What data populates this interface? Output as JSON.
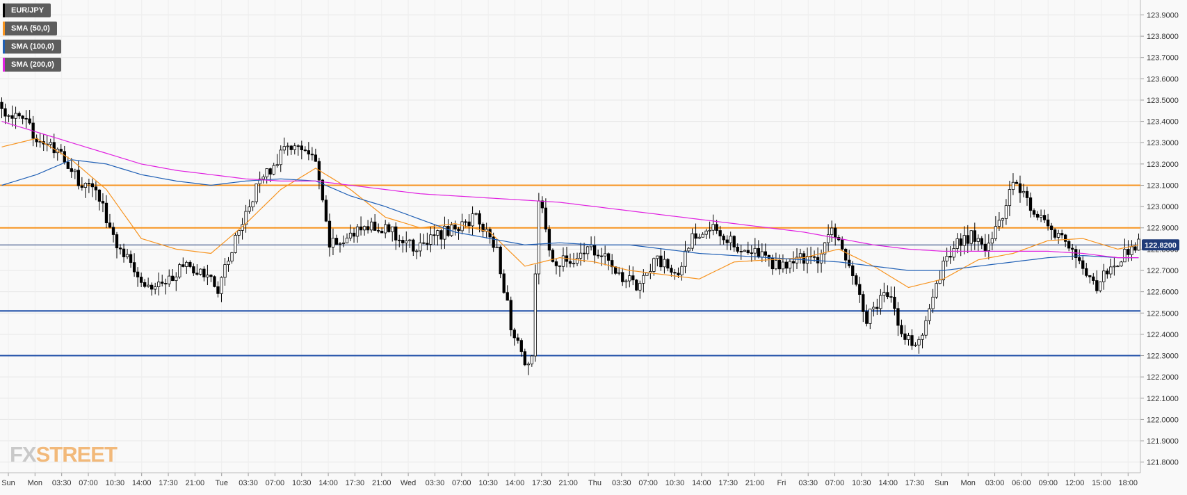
{
  "chart_data": {
    "type": "candlestick",
    "symbol": "EUR/JPY",
    "legend": [
      {
        "label": "EUR/JPY",
        "color": "#000000"
      },
      {
        "label": "SMA (50,0)",
        "color": "#f7931e"
      },
      {
        "label": "SMA (100,0)",
        "color": "#1f5fb5"
      },
      {
        "label": "SMA (200,0)",
        "color": "#e020e0"
      }
    ],
    "ylim": [
      121.75,
      123.97
    ],
    "yticks": [
      "123.9000",
      "123.8000",
      "123.7000",
      "123.6000",
      "123.5000",
      "123.4000",
      "123.3000",
      "123.2000",
      "123.1000",
      "123.0000",
      "122.9000",
      "122.8000",
      "122.7000",
      "122.6000",
      "122.5000",
      "122.4000",
      "122.3000",
      "122.2000",
      "122.1000",
      "122.0000",
      "121.9000",
      "121.8000"
    ],
    "xticks": [
      "Sun",
      "Mon",
      "03:30",
      "07:00",
      "10:30",
      "14:00",
      "17:30",
      "21:00",
      "Tue",
      "03:30",
      "07:00",
      "10:30",
      "14:00",
      "17:30",
      "21:00",
      "Wed",
      "03:30",
      "07:00",
      "10:30",
      "14:00",
      "17:30",
      "21:00",
      "Thu",
      "03:30",
      "07:00",
      "10:30",
      "14:00",
      "17:30",
      "21:00",
      "Fri",
      "03:30",
      "07:00",
      "10:30",
      "14:00",
      "17:30",
      "Sun",
      "Mon",
      "03:00",
      "06:00",
      "09:00",
      "12:00",
      "15:00",
      "18:00"
    ],
    "current_price": "122.8200",
    "resistance_levels": [
      123.1,
      122.9
    ],
    "support_levels": [
      122.51,
      122.3
    ],
    "levels_colors": {
      "resistance": "#f7931e",
      "support": "#1f4fa8",
      "current": "#1f3b78"
    },
    "close_path": [
      [
        0,
        123.45
      ],
      [
        6,
        123.4
      ],
      [
        12,
        123.3
      ],
      [
        18,
        123.22
      ],
      [
        22,
        123.12
      ],
      [
        28,
        123.05
      ],
      [
        32,
        122.85
      ],
      [
        38,
        122.72
      ],
      [
        42,
        122.62
      ],
      [
        48,
        122.66
      ],
      [
        52,
        122.72
      ],
      [
        58,
        122.68
      ],
      [
        62,
        122.62
      ],
      [
        66,
        122.8
      ],
      [
        70,
        122.98
      ],
      [
        74,
        123.12
      ],
      [
        80,
        123.24
      ],
      [
        84,
        123.3
      ],
      [
        90,
        123.2
      ],
      [
        94,
        122.82
      ],
      [
        100,
        122.86
      ],
      [
        106,
        122.92
      ],
      [
        112,
        122.88
      ],
      [
        118,
        122.8
      ],
      [
        124,
        122.86
      ],
      [
        130,
        122.9
      ],
      [
        136,
        122.95
      ],
      [
        142,
        122.8
      ],
      [
        146,
        122.45
      ],
      [
        150,
        122.24
      ],
      [
        152,
        122.3
      ],
      [
        154,
        123.05
      ],
      [
        158,
        122.72
      ],
      [
        164,
        122.76
      ],
      [
        170,
        122.8
      ],
      [
        176,
        122.7
      ],
      [
        182,
        122.62
      ],
      [
        188,
        122.75
      ],
      [
        194,
        122.68
      ],
      [
        198,
        122.86
      ],
      [
        204,
        122.92
      ],
      [
        210,
        122.82
      ],
      [
        216,
        122.78
      ],
      [
        222,
        122.72
      ],
      [
        228,
        122.75
      ],
      [
        234,
        122.76
      ],
      [
        238,
        122.88
      ],
      [
        244,
        122.7
      ],
      [
        248,
        122.48
      ],
      [
        254,
        122.6
      ],
      [
        258,
        122.4
      ],
      [
        262,
        122.33
      ],
      [
        266,
        122.5
      ],
      [
        270,
        122.72
      ],
      [
        274,
        122.82
      ],
      [
        278,
        122.86
      ],
      [
        282,
        122.8
      ],
      [
        286,
        122.92
      ],
      [
        290,
        123.12
      ],
      [
        294,
        123.02
      ],
      [
        298,
        122.95
      ],
      [
        302,
        122.88
      ],
      [
        306,
        122.82
      ],
      [
        310,
        122.7
      ],
      [
        314,
        122.62
      ],
      [
        318,
        122.72
      ],
      [
        322,
        122.78
      ],
      [
        326,
        122.82
      ]
    ],
    "sma50_path": [
      [
        0,
        123.28
      ],
      [
        10,
        123.32
      ],
      [
        20,
        123.22
      ],
      [
        30,
        123.08
      ],
      [
        40,
        122.85
      ],
      [
        50,
        122.8
      ],
      [
        60,
        122.78
      ],
      [
        70,
        122.92
      ],
      [
        80,
        123.08
      ],
      [
        90,
        123.18
      ],
      [
        100,
        123.08
      ],
      [
        110,
        122.95
      ],
      [
        120,
        122.9
      ],
      [
        130,
        122.92
      ],
      [
        140,
        122.88
      ],
      [
        150,
        122.72
      ],
      [
        160,
        122.76
      ],
      [
        170,
        122.74
      ],
      [
        180,
        122.7
      ],
      [
        190,
        122.68
      ],
      [
        200,
        122.66
      ],
      [
        210,
        122.74
      ],
      [
        220,
        122.75
      ],
      [
        230,
        122.76
      ],
      [
        240,
        122.8
      ],
      [
        250,
        122.72
      ],
      [
        260,
        122.62
      ],
      [
        270,
        122.66
      ],
      [
        280,
        122.75
      ],
      [
        290,
        122.78
      ],
      [
        300,
        122.84
      ],
      [
        310,
        122.85
      ],
      [
        320,
        122.8
      ],
      [
        326,
        122.82
      ]
    ],
    "sma100_path": [
      [
        0,
        123.1
      ],
      [
        10,
        123.15
      ],
      [
        20,
        123.22
      ],
      [
        30,
        123.2
      ],
      [
        40,
        123.15
      ],
      [
        50,
        123.12
      ],
      [
        60,
        123.1
      ],
      [
        70,
        123.12
      ],
      [
        80,
        123.13
      ],
      [
        90,
        123.12
      ],
      [
        100,
        123.05
      ],
      [
        110,
        123.0
      ],
      [
        120,
        122.94
      ],
      [
        130,
        122.88
      ],
      [
        140,
        122.85
      ],
      [
        150,
        122.82
      ],
      [
        160,
        122.83
      ],
      [
        170,
        122.82
      ],
      [
        180,
        122.82
      ],
      [
        190,
        122.8
      ],
      [
        200,
        122.78
      ],
      [
        210,
        122.77
      ],
      [
        220,
        122.76
      ],
      [
        230,
        122.75
      ],
      [
        240,
        122.74
      ],
      [
        250,
        122.72
      ],
      [
        260,
        122.7
      ],
      [
        270,
        122.7
      ],
      [
        280,
        122.72
      ],
      [
        290,
        122.74
      ],
      [
        300,
        122.76
      ],
      [
        310,
        122.77
      ],
      [
        320,
        122.76
      ],
      [
        326,
        122.76
      ]
    ],
    "sma200_path": [
      [
        0,
        123.4
      ],
      [
        10,
        123.35
      ],
      [
        20,
        123.3
      ],
      [
        30,
        123.25
      ],
      [
        40,
        123.2
      ],
      [
        50,
        123.17
      ],
      [
        60,
        123.15
      ],
      [
        70,
        123.13
      ],
      [
        80,
        123.12
      ],
      [
        90,
        123.12
      ],
      [
        100,
        123.1
      ],
      [
        110,
        123.08
      ],
      [
        120,
        123.06
      ],
      [
        130,
        123.05
      ],
      [
        140,
        123.04
      ],
      [
        150,
        123.03
      ],
      [
        160,
        123.02
      ],
      [
        170,
        123.0
      ],
      [
        180,
        122.98
      ],
      [
        190,
        122.96
      ],
      [
        200,
        122.94
      ],
      [
        210,
        122.92
      ],
      [
        220,
        122.9
      ],
      [
        230,
        122.88
      ],
      [
        240,
        122.85
      ],
      [
        250,
        122.82
      ],
      [
        260,
        122.8
      ],
      [
        270,
        122.79
      ],
      [
        280,
        122.79
      ],
      [
        290,
        122.79
      ],
      [
        300,
        122.79
      ],
      [
        310,
        122.78
      ],
      [
        320,
        122.76
      ],
      [
        326,
        122.76
      ]
    ]
  },
  "branding": {
    "logo_fx": "FX",
    "logo_street": "STREET"
  }
}
